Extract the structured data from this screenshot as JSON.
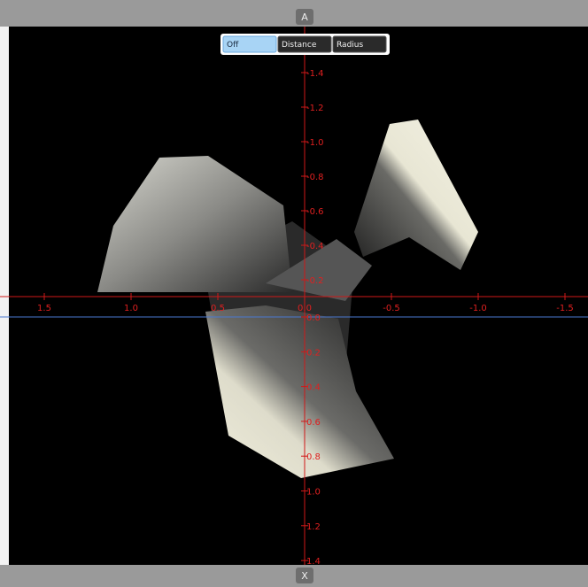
{
  "top_button": "A",
  "bottom_button": "X",
  "toolbar": {
    "buttons": [
      "Off",
      "Distance",
      "Radius"
    ],
    "selected": 0
  },
  "x_axis": {
    "ticks": [
      "1.5",
      "1.0",
      "0.5",
      "0.0",
      "-0.5",
      "-1.0",
      "-1.5"
    ]
  },
  "y_axis": {
    "ticks_above": [
      "-1.4",
      "-1.2",
      "-1.0",
      "-0.8",
      "-0.6",
      "-0.4",
      "-0.2"
    ],
    "ticks_below": [
      "0.0",
      "0.2",
      "0.4",
      "0.6",
      "0.8",
      "1.0",
      "1.2",
      "1.4"
    ]
  }
}
